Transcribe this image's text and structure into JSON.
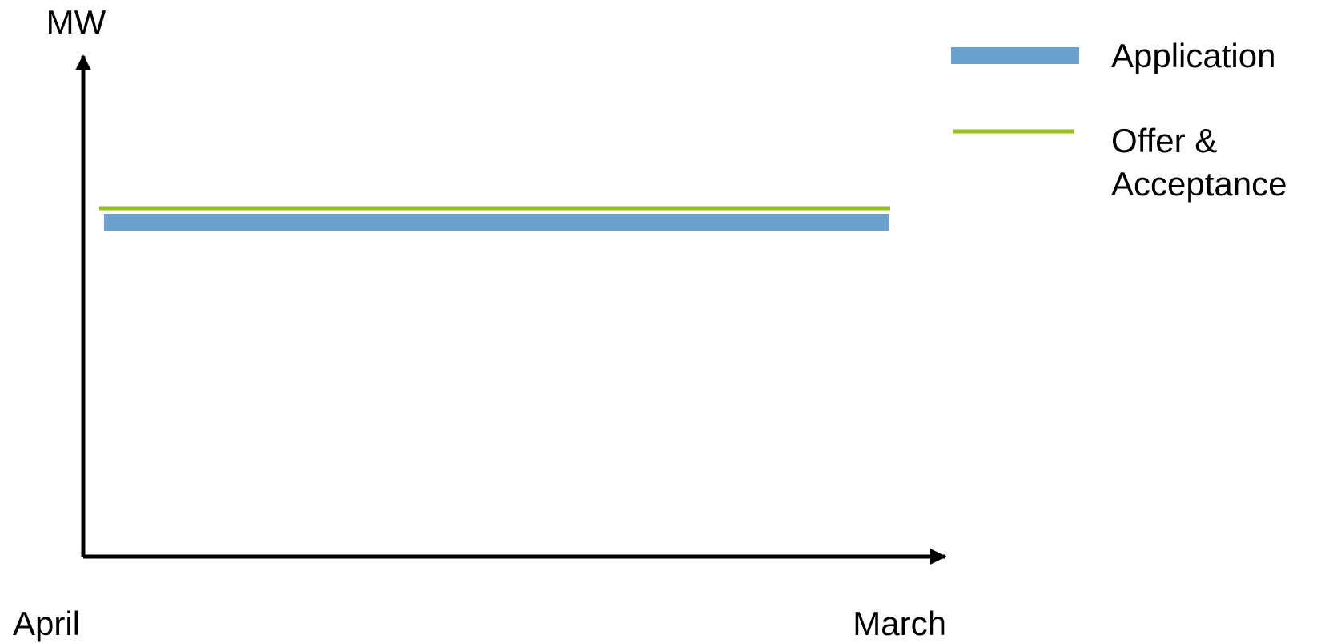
{
  "chart_data": {
    "type": "line",
    "title": "",
    "ylabel": "MW",
    "xlabel": "",
    "x_tick_labels": [
      "April",
      "March"
    ],
    "series": [
      {
        "name": "Application",
        "color": "#6aa1cf",
        "style": "thick-bar"
      },
      {
        "name": "Offer & Acceptance",
        "color": "#99c11b",
        "style": "thin-line"
      }
    ],
    "legend": {
      "position": "top-right",
      "items": [
        {
          "label_lines": [
            "Application"
          ]
        },
        {
          "label_lines": [
            "Offer &",
            "Acceptance"
          ]
        }
      ]
    },
    "grid": false
  }
}
